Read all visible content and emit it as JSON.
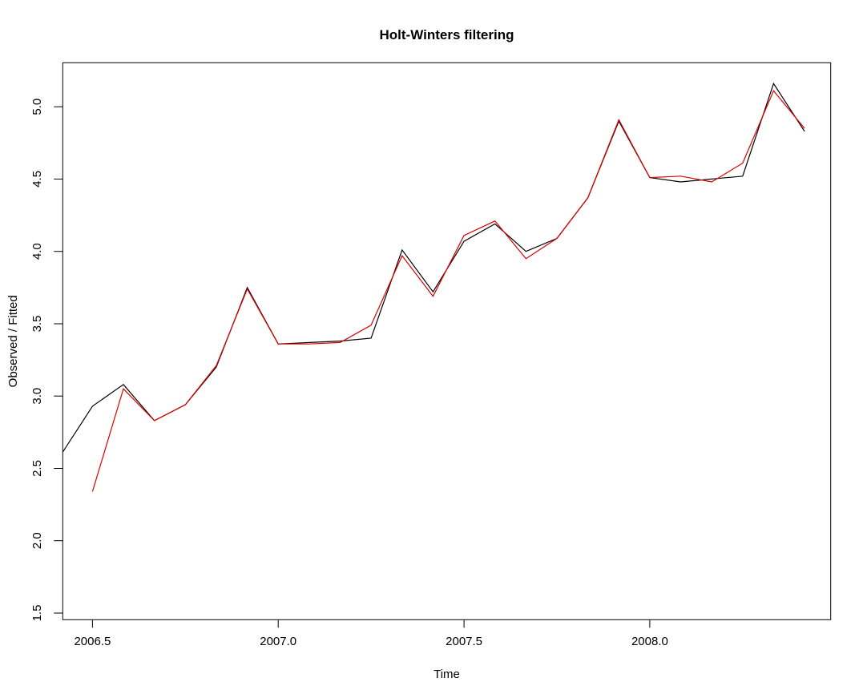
{
  "window": {
    "background_color": "#ffffff"
  },
  "chart_data": {
    "type": "line",
    "title": "Holt-Winters filtering",
    "xlabel": "Time",
    "ylabel": "Observed / Fitted",
    "xlim": [
      2006.42,
      2008.487
    ],
    "ylim": [
      1.454,
      5.304
    ],
    "x_ticks": [
      2006.5,
      2007.0,
      2007.5,
      2008.0
    ],
    "x_tick_labels": [
      "2006.5",
      "2007.0",
      "2007.5",
      "2008.0"
    ],
    "y_ticks": [
      1.5,
      2.0,
      2.5,
      3.0,
      3.5,
      4.0,
      4.5,
      5.0
    ],
    "y_tick_labels": [
      "1.5",
      "2.0",
      "2.5",
      "3.0",
      "3.5",
      "4.0",
      "4.5",
      "5.0"
    ],
    "grid": false,
    "legend": "none",
    "frequency": "monthly",
    "axis_color": "#000000",
    "series": [
      {
        "name": "observed",
        "label": "Observed",
        "color": "#000000",
        "x": [
          2006.4167,
          2006.5,
          2006.5833,
          2006.6667,
          2006.75,
          2006.8333,
          2006.9167,
          2007.0,
          2007.0833,
          2007.1667,
          2007.25,
          2007.3333,
          2007.4167,
          2007.5,
          2007.5833,
          2007.6667,
          2007.75,
          2007.8333,
          2007.9167,
          2008.0,
          2008.0833,
          2008.1667,
          2008.25,
          2008.3333,
          2008.4167
        ],
        "y": [
          2.6,
          2.93,
          3.08,
          2.83,
          2.94,
          3.2,
          3.75,
          3.36,
          3.37,
          3.38,
          3.4,
          4.01,
          3.72,
          4.07,
          4.19,
          4.0,
          4.09,
          4.37,
          4.9,
          4.51,
          4.48,
          4.5,
          4.52,
          5.16,
          4.83
        ]
      },
      {
        "name": "fitted",
        "label": "Fitted",
        "color": "#dd0000",
        "x": [
          2006.5,
          2006.5833,
          2006.6667,
          2006.75,
          2006.8333,
          2006.9167,
          2007.0,
          2007.0833,
          2007.1667,
          2007.25,
          2007.3333,
          2007.4167,
          2007.5,
          2007.5833,
          2007.6667,
          2007.75,
          2007.8333,
          2007.9167,
          2008.0,
          2008.0833,
          2008.1667,
          2008.25,
          2008.3333,
          2008.4167
        ],
        "y": [
          2.34,
          3.05,
          2.83,
          2.94,
          3.21,
          3.74,
          3.36,
          3.36,
          3.37,
          3.49,
          3.97,
          3.69,
          4.11,
          4.21,
          3.95,
          4.09,
          4.37,
          4.91,
          4.51,
          4.52,
          4.48,
          4.61,
          5.11,
          4.85
        ]
      }
    ]
  }
}
